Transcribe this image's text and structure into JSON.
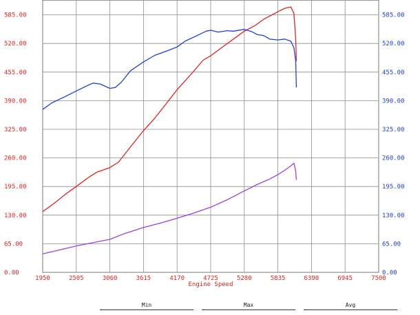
{
  "chart_data": {
    "type": "line",
    "title": "",
    "xlabel": "Engine Speed",
    "ylabel": "",
    "xlim": [
      1950,
      7500
    ],
    "ylim": [
      0,
      650
    ],
    "grid": true,
    "x_ticks": [
      "1950",
      "2505",
      "3060",
      "3615",
      "4170",
      "4725",
      "5280",
      "5835",
      "6390",
      "6945",
      "7500"
    ],
    "y_ticks_left": [
      "0.00",
      "65.00",
      "130.00",
      "195.00",
      "260.00",
      "325.00",
      "390.00",
      "455.00",
      "520.00",
      "585.00"
    ],
    "y_ticks_right": [
      "0.00",
      "65.00",
      "130.00",
      "195.00",
      "260.00",
      "325.00",
      "390.00",
      "455.00",
      "520.00",
      "585.00"
    ],
    "series": [
      {
        "color": "#e0241c",
        "points": [
          [
            1950,
            138
          ],
          [
            2150,
            158
          ],
          [
            2350,
            180
          ],
          [
            2505,
            195
          ],
          [
            2700,
            215
          ],
          [
            2850,
            228
          ],
          [
            3060,
            238
          ],
          [
            3200,
            250
          ],
          [
            3400,
            285
          ],
          [
            3615,
            322
          ],
          [
            3800,
            350
          ],
          [
            4000,
            385
          ],
          [
            4170,
            415
          ],
          [
            4400,
            450
          ],
          [
            4600,
            482
          ],
          [
            4725,
            492
          ],
          [
            4900,
            510
          ],
          [
            5100,
            530
          ],
          [
            5280,
            548
          ],
          [
            5450,
            560
          ],
          [
            5600,
            575
          ],
          [
            5835,
            592
          ],
          [
            5950,
            600
          ],
          [
            6050,
            603
          ],
          [
            6100,
            588
          ],
          [
            6130,
            530
          ],
          [
            6140,
            480
          ]
        ]
      },
      {
        "color": "#1e3fd8",
        "points": [
          [
            1950,
            370
          ],
          [
            2100,
            385
          ],
          [
            2300,
            398
          ],
          [
            2505,
            412
          ],
          [
            2700,
            425
          ],
          [
            2780,
            430
          ],
          [
            2900,
            428
          ],
          [
            3060,
            418
          ],
          [
            3150,
            420
          ],
          [
            3250,
            432
          ],
          [
            3400,
            458
          ],
          [
            3615,
            478
          ],
          [
            3800,
            493
          ],
          [
            4000,
            503
          ],
          [
            4170,
            512
          ],
          [
            4300,
            525
          ],
          [
            4500,
            538
          ],
          [
            4650,
            548
          ],
          [
            4725,
            550
          ],
          [
            4850,
            546
          ],
          [
            5000,
            549
          ],
          [
            5100,
            548
          ],
          [
            5280,
            552
          ],
          [
            5400,
            547
          ],
          [
            5500,
            540
          ],
          [
            5600,
            538
          ],
          [
            5700,
            530
          ],
          [
            5835,
            528
          ],
          [
            5950,
            530
          ],
          [
            6050,
            525
          ],
          [
            6100,
            510
          ],
          [
            6130,
            480
          ],
          [
            6140,
            420
          ]
        ]
      },
      {
        "color": "#9a3fe0",
        "points": [
          [
            1950,
            42
          ],
          [
            2200,
            50
          ],
          [
            2505,
            60
          ],
          [
            2800,
            68
          ],
          [
            3060,
            75
          ],
          [
            3300,
            88
          ],
          [
            3615,
            102
          ],
          [
            3900,
            112
          ],
          [
            4170,
            123
          ],
          [
            4450,
            135
          ],
          [
            4725,
            148
          ],
          [
            5000,
            165
          ],
          [
            5280,
            185
          ],
          [
            5500,
            200
          ],
          [
            5700,
            212
          ],
          [
            5835,
            222
          ],
          [
            5950,
            232
          ],
          [
            6050,
            242
          ],
          [
            6100,
            248
          ],
          [
            6130,
            230
          ],
          [
            6140,
            210
          ]
        ]
      }
    ]
  },
  "legend": {
    "min_label": "Min",
    "max_label": "Max",
    "avg_label": "Avg"
  }
}
